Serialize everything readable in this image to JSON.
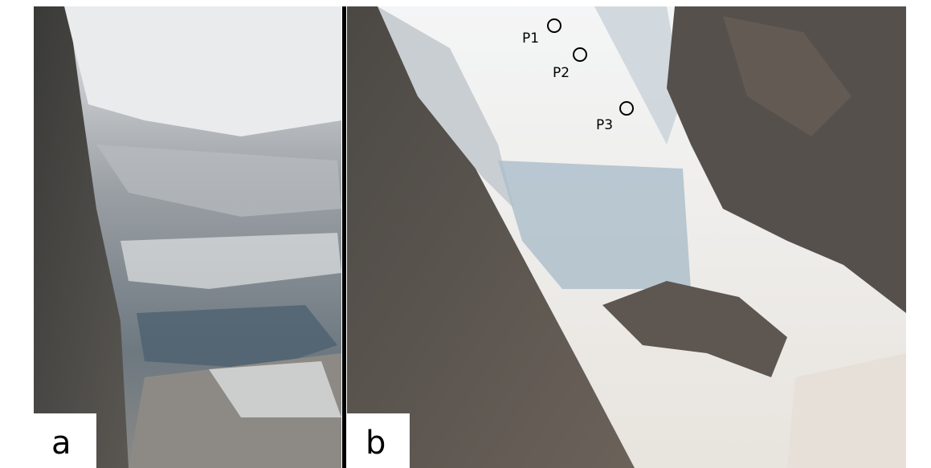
{
  "panels": [
    {
      "label": "a"
    },
    {
      "label": "b",
      "points": [
        {
          "label": "P1"
        },
        {
          "label": "P2"
        },
        {
          "label": "P3"
        }
      ]
    }
  ]
}
